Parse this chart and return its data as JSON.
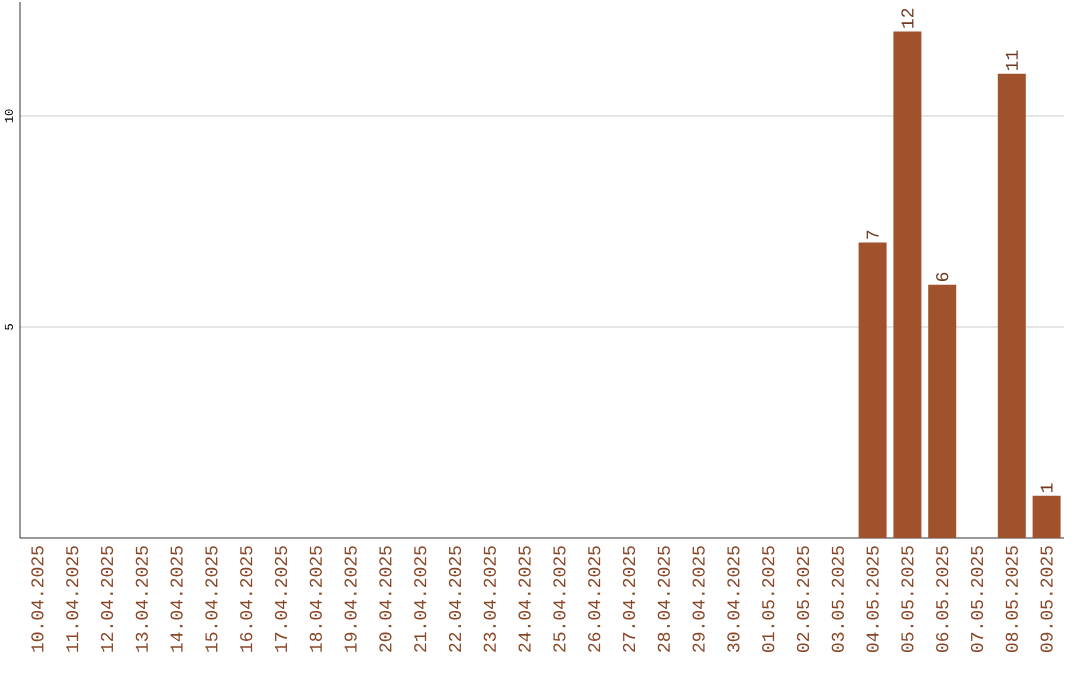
{
  "chart_data": {
    "type": "bar",
    "categories": [
      "10.04.2025",
      "11.04.2025",
      "12.04.2025",
      "13.04.2025",
      "14.04.2025",
      "15.04.2025",
      "16.04.2025",
      "17.04.2025",
      "18.04.2025",
      "19.04.2025",
      "20.04.2025",
      "21.04.2025",
      "22.04.2025",
      "23.04.2025",
      "24.04.2025",
      "25.04.2025",
      "26.04.2025",
      "27.04.2025",
      "28.04.2025",
      "29.04.2025",
      "30.04.2025",
      "01.05.2025",
      "02.05.2025",
      "03.05.2025",
      "04.05.2025",
      "05.05.2025",
      "06.05.2025",
      "07.05.2025",
      "08.05.2025",
      "09.05.2025"
    ],
    "values": [
      0,
      0,
      0,
      0,
      0,
      0,
      0,
      0,
      0,
      0,
      0,
      0,
      0,
      0,
      0,
      0,
      0,
      0,
      0,
      0,
      0,
      0,
      0,
      0,
      7,
      12,
      6,
      0,
      11,
      1
    ],
    "value_labels": [
      null,
      null,
      null,
      null,
      null,
      null,
      null,
      null,
      null,
      null,
      null,
      null,
      null,
      null,
      null,
      null,
      null,
      null,
      null,
      null,
      null,
      null,
      null,
      null,
      "7",
      "12",
      "6",
      null,
      "11",
      "1"
    ],
    "color": "#a0522d",
    "ylim": [
      0,
      12.7
    ],
    "yticks": [
      5,
      10
    ],
    "grid": "y"
  }
}
